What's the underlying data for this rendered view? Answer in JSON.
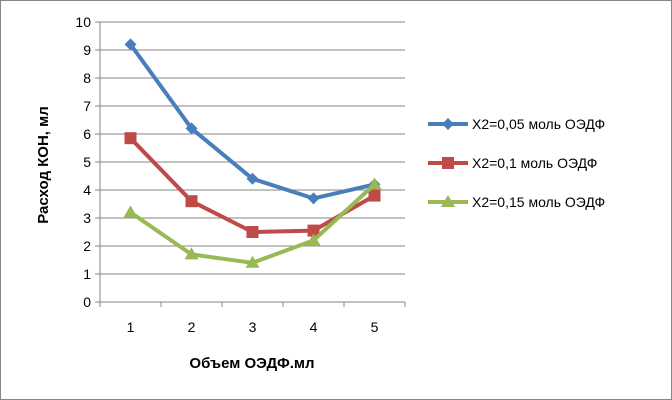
{
  "chart_data": {
    "type": "line",
    "title": "",
    "xlabel": "Объем ОЭДФ.мл",
    "ylabel": "Расход КОН, мл",
    "categories": [
      "1",
      "2",
      "3",
      "4",
      "5"
    ],
    "ylim": [
      0,
      10
    ],
    "yticks": [
      "0",
      "1",
      "2",
      "3",
      "4",
      "5",
      "6",
      "7",
      "8",
      "9",
      "10"
    ],
    "grid": "horizontal",
    "legend_position": "right",
    "series": [
      {
        "name": "X2=0,05 моль ОЭДФ",
        "values": [
          9.2,
          6.2,
          4.4,
          3.7,
          4.2
        ],
        "color": "#4a7ebb",
        "marker": "diamond"
      },
      {
        "name": "X2=0,1 моль ОЭДФ",
        "values": [
          5.85,
          3.6,
          2.5,
          2.55,
          3.8
        ],
        "color": "#be4b48",
        "marker": "square"
      },
      {
        "name": "X2=0,15 моль ОЭДФ",
        "values": [
          3.2,
          1.7,
          1.4,
          2.2,
          4.2
        ],
        "color": "#98b954",
        "marker": "triangle"
      }
    ]
  }
}
